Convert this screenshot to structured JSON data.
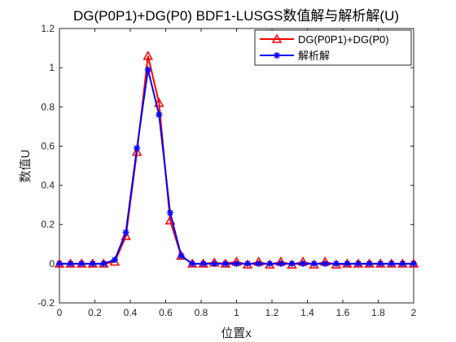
{
  "chart_data": {
    "type": "line",
    "title": "DG(P0P1)+DG(P0) BDF1-LUSGS数值解与解析解(U)",
    "xlabel": "位置x",
    "ylabel": "数值U",
    "xlim": [
      0,
      2
    ],
    "ylim": [
      -0.2,
      1.2
    ],
    "xticks": [
      "0",
      "0.2",
      "0.4",
      "0.6",
      "0.8",
      "1",
      "1.2",
      "1.4",
      "1.6",
      "1.8",
      "2"
    ],
    "xtick_values": [
      0,
      0.2,
      0.4,
      0.6,
      0.8,
      1.0,
      1.2,
      1.4,
      1.6,
      1.8,
      2.0
    ],
    "yticks": [
      "-0.2",
      "0",
      "0.2",
      "0.4",
      "0.6",
      "0.8",
      "1",
      "1.2"
    ],
    "ytick_values": [
      -0.2,
      0,
      0.2,
      0.4,
      0.6,
      0.8,
      1.0,
      1.2
    ],
    "grid": false,
    "legend_position": "top-right",
    "x": [
      0,
      0.0625,
      0.125,
      0.1875,
      0.25,
      0.3125,
      0.375,
      0.4375,
      0.5,
      0.5625,
      0.625,
      0.6875,
      0.75,
      0.8125,
      0.875,
      0.9375,
      1.0,
      1.0625,
      1.125,
      1.1875,
      1.25,
      1.3125,
      1.375,
      1.4375,
      1.5,
      1.5625,
      1.625,
      1.6875,
      1.75,
      1.8125,
      1.875,
      1.9375,
      2.0
    ],
    "series": [
      {
        "name": "DG(P0P1)+DG(P0)",
        "color": "#ff0000",
        "marker": "triangle",
        "values": [
          0,
          0,
          0,
          0,
          0,
          0.01,
          0.14,
          0.57,
          1.06,
          0.82,
          0.22,
          0.04,
          0,
          0,
          0.005,
          0,
          0.01,
          -0.005,
          0.01,
          -0.005,
          0.01,
          -0.005,
          0.01,
          -0.005,
          0.01,
          -0.005,
          0,
          0,
          0,
          0,
          0,
          0,
          0
        ]
      },
      {
        "name": "解析解",
        "color": "#0000ff",
        "marker": "asterisk",
        "values": [
          0,
          0,
          0,
          0,
          0,
          0.02,
          0.16,
          0.59,
          0.99,
          0.76,
          0.26,
          0.04,
          0,
          0,
          0,
          0,
          0,
          0,
          0,
          0,
          0,
          0,
          0,
          0,
          0,
          0,
          0,
          0,
          0,
          0,
          0,
          0,
          0
        ]
      }
    ]
  }
}
